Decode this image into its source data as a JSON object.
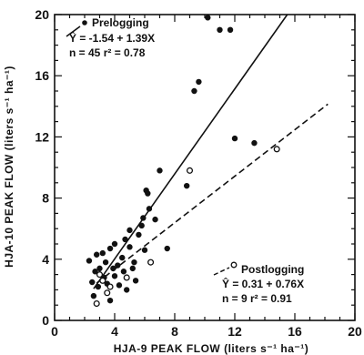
{
  "chart_data": {
    "type": "scatter",
    "xlabel": "HJA-9 PEAK FLOW (liters s⁻¹ ha⁻¹)",
    "ylabel": "HJA-10 PEAK FLOW (liters s⁻¹ ha⁻¹)",
    "xlim": [
      0,
      20
    ],
    "ylim": [
      0,
      20
    ],
    "x_ticks": [
      0,
      4,
      8,
      12,
      16,
      20
    ],
    "y_ticks": [
      0,
      4,
      8,
      12,
      16,
      20
    ],
    "x_tick_labels": [
      "0",
      "4",
      "8",
      "12",
      "16",
      "20"
    ],
    "y_tick_labels": [
      "0",
      "4",
      "8",
      "12",
      "16",
      "20"
    ],
    "grid": false,
    "series": [
      {
        "name": "Prelogging",
        "marker": "filled-circle",
        "equation": "Ŷ = -1.54 + 1.39X",
        "stats": "n = 45  r² = 0.78",
        "fit": {
          "intercept": -1.54,
          "slope": 1.39,
          "line": "solid"
        },
        "points": [
          [
            2.3,
            3.9
          ],
          [
            2.5,
            2.5
          ],
          [
            2.7,
            3.2
          ],
          [
            2.8,
            4.3
          ],
          [
            2.9,
            2.2
          ],
          [
            3.0,
            3.4
          ],
          [
            3.2,
            4.4
          ],
          [
            3.3,
            2.8
          ],
          [
            3.4,
            3.8
          ],
          [
            3.5,
            2.4
          ],
          [
            3.7,
            1.3
          ],
          [
            3.7,
            4.7
          ],
          [
            3.9,
            3.4
          ],
          [
            4.0,
            2.9
          ],
          [
            4.0,
            5.0
          ],
          [
            4.2,
            3.6
          ],
          [
            4.3,
            2.3
          ],
          [
            4.5,
            4.1
          ],
          [
            4.6,
            3.2
          ],
          [
            4.7,
            5.3
          ],
          [
            4.8,
            2.0
          ],
          [
            5.0,
            4.8
          ],
          [
            5.0,
            5.9
          ],
          [
            5.2,
            3.4
          ],
          [
            5.3,
            3.8
          ],
          [
            5.4,
            2.6
          ],
          [
            5.6,
            5.6
          ],
          [
            5.8,
            6.2
          ],
          [
            5.9,
            6.7
          ],
          [
            6.0,
            4.6
          ],
          [
            6.1,
            8.5
          ],
          [
            6.2,
            8.3
          ],
          [
            6.3,
            7.3
          ],
          [
            6.7,
            6.6
          ],
          [
            7.0,
            9.8
          ],
          [
            7.5,
            4.7
          ],
          [
            8.8,
            8.8
          ],
          [
            9.3,
            15.0
          ],
          [
            9.6,
            15.6
          ],
          [
            10.2,
            19.8
          ],
          [
            11.0,
            19.0
          ],
          [
            11.7,
            19.0
          ],
          [
            12.0,
            11.9
          ],
          [
            13.3,
            11.6
          ],
          [
            2.6,
            1.6
          ]
        ]
      },
      {
        "name": "Postlogging",
        "marker": "open-circle",
        "equation": "Ŷ = 0.31 + 0.76X",
        "stats": "n = 9  r² = 0.91",
        "fit": {
          "intercept": 0.31,
          "slope": 0.76,
          "line": "dashed"
        },
        "points": [
          [
            2.8,
            1.1
          ],
          [
            3.0,
            3.0
          ],
          [
            3.2,
            2.6
          ],
          [
            3.5,
            1.8
          ],
          [
            3.7,
            2.2
          ],
          [
            4.8,
            2.8
          ],
          [
            6.4,
            3.8
          ],
          [
            9.0,
            9.8
          ],
          [
            14.8,
            11.2
          ]
        ]
      }
    ]
  }
}
